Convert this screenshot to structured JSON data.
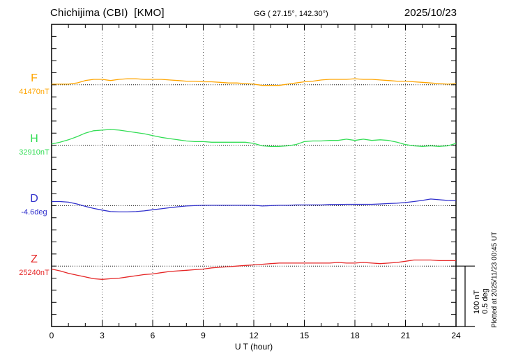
{
  "header": {
    "station": "Chichijima (CBI)  [KMO]",
    "coords": "GG ( 27.15°, 142.30°)",
    "date": "2025/10/23"
  },
  "axis": {
    "xlabel": "U T (hour)",
    "xticks": [
      "0",
      "3",
      "6",
      "9",
      "12",
      "15",
      "18",
      "21",
      "24"
    ]
  },
  "scale_bar": {
    "line1": "100 nT",
    "line2": "0.5 deg"
  },
  "footer": {
    "plotted_at": "Plotted at 2025/11/23 00:45 UT"
  },
  "chart_data": {
    "type": "line",
    "title": "Chichijima (CBI) [KMO] magnetogram 2025/10/23",
    "xlabel": "U T (hour)",
    "x_range_hours": [
      0,
      24
    ],
    "x_step_hours": 0.5,
    "x_tick_hours": [
      0,
      3,
      6,
      9,
      12,
      15,
      18,
      21,
      24
    ],
    "grid": "dotted vertical gridlines every 3 hours; dotted horizontal baseline for each component",
    "legend_position": "left of each trace baseline",
    "scale_division": {
      "nT": 100,
      "deg": 0.5
    },
    "series": [
      {
        "name": "F",
        "unit": "nT",
        "baseline": 41470,
        "baseline_label": "41470nT",
        "color": "#FFA500",
        "delta": [
          1,
          1,
          1,
          3,
          7,
          9,
          9,
          7,
          9,
          10,
          10,
          9,
          9,
          9,
          8,
          7,
          6,
          6,
          5,
          5,
          4,
          3,
          3,
          2,
          1,
          -1,
          -1,
          -1,
          1,
          3,
          5,
          6,
          8,
          9,
          9,
          9,
          10,
          9,
          9,
          8,
          7,
          6,
          6,
          5,
          4,
          3,
          2,
          1,
          2
        ]
      },
      {
        "name": "H",
        "unit": "nT",
        "baseline": 32910,
        "baseline_label": "32910nT",
        "color": "#33DD55",
        "delta": [
          2,
          5,
          9,
          14,
          20,
          24,
          25,
          26,
          25,
          23,
          21,
          19,
          16,
          13,
          11,
          9,
          7,
          6,
          6,
          5,
          5,
          5,
          5,
          5,
          3,
          -1,
          -2,
          -2,
          -1,
          1,
          6,
          7,
          7,
          8,
          8,
          10,
          8,
          10,
          8,
          9,
          8,
          5,
          1,
          -1,
          -2,
          -1,
          -2,
          -1,
          3
        ]
      },
      {
        "name": "D",
        "unit": "deg",
        "baseline": -4.6,
        "baseline_label": "-4.6deg",
        "color": "#3030CC",
        "delta": [
          0.034,
          0.034,
          0.029,
          0.014,
          -0.006,
          -0.023,
          -0.037,
          -0.049,
          -0.052,
          -0.052,
          -0.049,
          -0.043,
          -0.034,
          -0.026,
          -0.017,
          -0.009,
          -0.003,
          0,
          0.003,
          0.003,
          0.003,
          0.003,
          0.003,
          0.003,
          0.003,
          -0.003,
          0,
          0.003,
          0.003,
          0.006,
          0.006,
          0.006,
          0.006,
          0.009,
          0.009,
          0.011,
          0.011,
          0.011,
          0.011,
          0.014,
          0.017,
          0.02,
          0.026,
          0.034,
          0.043,
          0.055,
          0.049,
          0.043,
          0.04
        ]
      },
      {
        "name": "Z",
        "unit": "nT",
        "baseline": 25240,
        "baseline_label": "25240nT",
        "color": "#E52525",
        "delta": [
          -5,
          -8,
          -12,
          -15,
          -18,
          -21,
          -22,
          -21,
          -20,
          -18,
          -16,
          -14,
          -13,
          -11,
          -9,
          -8,
          -7,
          -6,
          -5,
          -3,
          -2,
          -1,
          0,
          1,
          2,
          3,
          4,
          5,
          5,
          5,
          5,
          5,
          5,
          5,
          6,
          5,
          5,
          6,
          5,
          4,
          5,
          6,
          8,
          10,
          10,
          10,
          9,
          9,
          9
        ]
      }
    ]
  }
}
